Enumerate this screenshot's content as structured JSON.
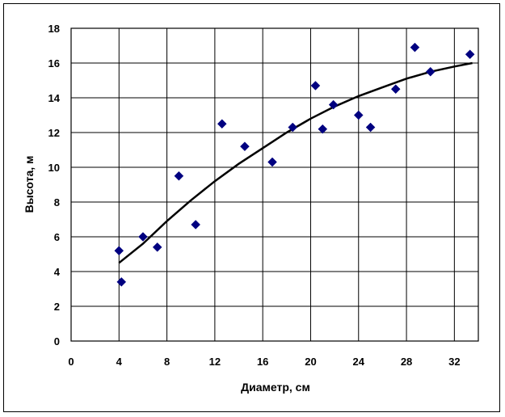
{
  "chart_data": {
    "type": "scatter",
    "xlabel": "Диаметр,  см",
    "ylabel": "Высота,  м",
    "xlim": [
      0,
      34
    ],
    "ylim": [
      0,
      18
    ],
    "xticks": [
      0,
      4,
      8,
      12,
      16,
      20,
      24,
      28,
      32
    ],
    "yticks": [
      0,
      2,
      4,
      6,
      8,
      10,
      12,
      14,
      16,
      18
    ],
    "grid": true,
    "legend": "none",
    "marker_color": "#000080",
    "trend_color": "#000000",
    "points": [
      {
        "x": 4.0,
        "y": 5.2
      },
      {
        "x": 4.2,
        "y": 3.4
      },
      {
        "x": 6.0,
        "y": 6.0
      },
      {
        "x": 7.2,
        "y": 5.4
      },
      {
        "x": 9.0,
        "y": 9.5
      },
      {
        "x": 10.4,
        "y": 6.7
      },
      {
        "x": 12.6,
        "y": 12.5
      },
      {
        "x": 14.5,
        "y": 11.2
      },
      {
        "x": 16.8,
        "y": 10.3
      },
      {
        "x": 18.5,
        "y": 12.3
      },
      {
        "x": 20.4,
        "y": 14.7
      },
      {
        "x": 21.0,
        "y": 12.2
      },
      {
        "x": 21.9,
        "y": 13.6
      },
      {
        "x": 24.0,
        "y": 13.0
      },
      {
        "x": 25.0,
        "y": 12.3
      },
      {
        "x": 27.1,
        "y": 14.5
      },
      {
        "x": 28.7,
        "y": 16.9
      },
      {
        "x": 30.0,
        "y": 15.5
      },
      {
        "x": 33.3,
        "y": 16.5
      }
    ],
    "trendline": [
      {
        "x": 4.0,
        "y": 4.5
      },
      {
        "x": 6.0,
        "y": 5.6
      },
      {
        "x": 8.0,
        "y": 6.9
      },
      {
        "x": 10.0,
        "y": 8.1
      },
      {
        "x": 12.0,
        "y": 9.2
      },
      {
        "x": 14.0,
        "y": 10.2
      },
      {
        "x": 16.0,
        "y": 11.1
      },
      {
        "x": 18.0,
        "y": 12.0
      },
      {
        "x": 20.0,
        "y": 12.8
      },
      {
        "x": 22.0,
        "y": 13.5
      },
      {
        "x": 24.0,
        "y": 14.1
      },
      {
        "x": 26.0,
        "y": 14.6
      },
      {
        "x": 28.0,
        "y": 15.1
      },
      {
        "x": 30.0,
        "y": 15.5
      },
      {
        "x": 32.0,
        "y": 15.8
      },
      {
        "x": 33.5,
        "y": 16.0
      }
    ]
  }
}
